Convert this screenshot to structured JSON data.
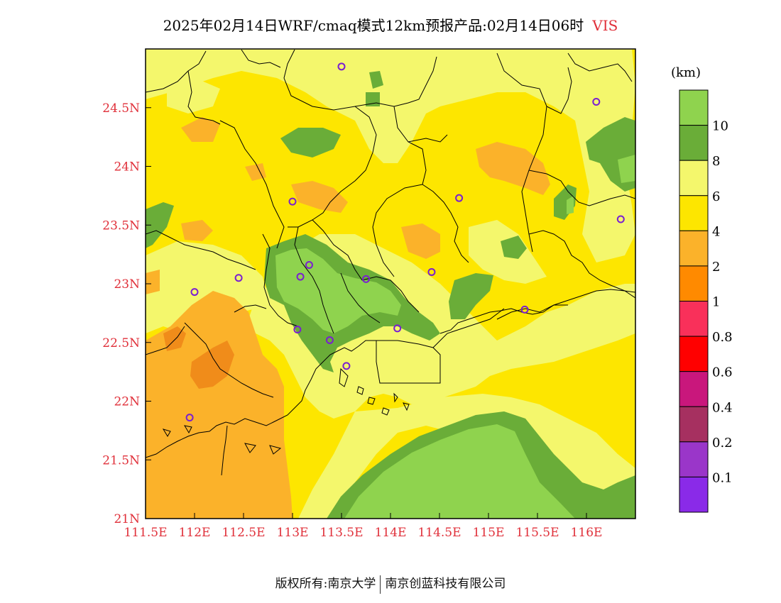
{
  "title": {
    "text": "2025年02月14日WRF/cmaq模式12km预报产品:02月14日06时",
    "variable": "VIS"
  },
  "map": {
    "lon_range": [
      111.5,
      116.5
    ],
    "lat_range": [
      21,
      25
    ],
    "lat_ticks": [
      {
        "value": 24.5,
        "label": "24.5N"
      },
      {
        "value": 24,
        "label": "24N"
      },
      {
        "value": 23.5,
        "label": "23.5N"
      },
      {
        "value": 23,
        "label": "23N"
      },
      {
        "value": 22.5,
        "label": "22.5N"
      },
      {
        "value": 22,
        "label": "22N"
      },
      {
        "value": 21.5,
        "label": "21.5N"
      },
      {
        "value": 21,
        "label": "21N"
      }
    ],
    "lon_ticks": [
      {
        "value": 111.5,
        "label": "111.5E"
      },
      {
        "value": 112,
        "label": "112E"
      },
      {
        "value": 112.5,
        "label": "112.5E"
      },
      {
        "value": 113,
        "label": "113E"
      },
      {
        "value": 113.5,
        "label": "113.5E"
      },
      {
        "value": 114,
        "label": "114E"
      },
      {
        "value": 114.5,
        "label": "114.5E"
      },
      {
        "value": 115,
        "label": "115E"
      },
      {
        "value": 115.5,
        "label": "115.5E"
      },
      {
        "value": 116,
        "label": "116E"
      }
    ],
    "stations": [
      {
        "lon": 113.5,
        "lat": 24.85
      },
      {
        "lon": 116.1,
        "lat": 24.55
      },
      {
        "lon": 113.0,
        "lat": 23.7
      },
      {
        "lon": 114.7,
        "lat": 23.73
      },
      {
        "lon": 116.35,
        "lat": 23.55
      },
      {
        "lon": 113.17,
        "lat": 23.16
      },
      {
        "lon": 113.08,
        "lat": 23.06
      },
      {
        "lon": 113.75,
        "lat": 23.04
      },
      {
        "lon": 114.42,
        "lat": 23.1
      },
      {
        "lon": 112.45,
        "lat": 23.05
      },
      {
        "lon": 112.0,
        "lat": 22.93
      },
      {
        "lon": 115.37,
        "lat": 22.78
      },
      {
        "lon": 113.05,
        "lat": 22.61
      },
      {
        "lon": 114.07,
        "lat": 22.62
      },
      {
        "lon": 113.38,
        "lat": 22.52
      },
      {
        "lon": 113.55,
        "lat": 22.3
      },
      {
        "lon": 111.95,
        "lat": 21.86
      }
    ]
  },
  "colorbar": {
    "unit": "(km)",
    "levels": [
      {
        "label": "",
        "color": "#8fd34e"
      },
      {
        "label": "10",
        "color": "#6aad38"
      },
      {
        "label": "8",
        "color": "#f4f76c"
      },
      {
        "label": "6",
        "color": "#fde600"
      },
      {
        "label": "4",
        "color": "#fbb22a"
      },
      {
        "label": "2",
        "color": "#ff8a00"
      },
      {
        "label": "1",
        "color": "#f9305a"
      },
      {
        "label": "0.8",
        "color": "#ff0000"
      },
      {
        "label": "0.6",
        "color": "#c9177c"
      },
      {
        "label": "0.4",
        "color": "#a63060"
      },
      {
        "label": "0.2",
        "color": "#9a36c9"
      },
      {
        "label": "0.1",
        "color": "#8a2ae8"
      }
    ]
  },
  "footer": {
    "left": "版权所有:南京大学",
    "right": "南京创蓝科技有限公司"
  }
}
